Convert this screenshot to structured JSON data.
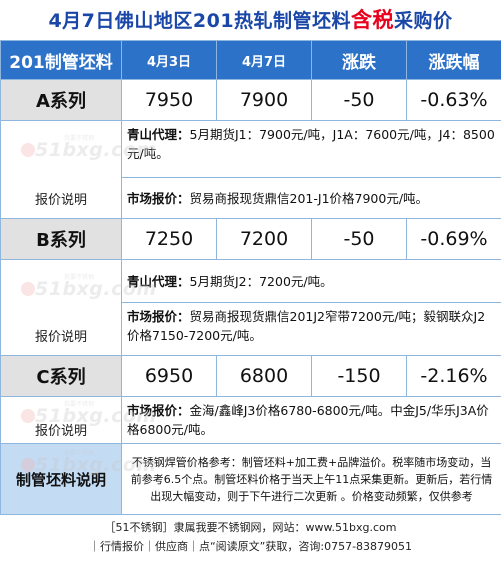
{
  "title": {
    "prefix": "4月7日佛山地区201热轧制管坯料",
    "highlight": "含税",
    "suffix": "采购价"
  },
  "table": {
    "header": {
      "product": "201制管坯料",
      "date1": "4月3日",
      "date2": "4月7日",
      "change": "涨跌",
      "change_pct": "涨跌幅"
    },
    "rows": [
      {
        "name": "A系列",
        "v1": "7950",
        "v2": "7900",
        "change": "-50",
        "pct": "-0.63%",
        "label": "报价说明",
        "lines": [
          {
            "key": "青山代理：",
            "text": "5月期货J1：7900元/吨，J1A：7600元/吨，J4：8500元/吨。"
          },
          {
            "key": "市场报价：",
            "text": "贸易商报现货鼎信201-J1价格7900元/吨。"
          }
        ]
      },
      {
        "name": "B系列",
        "v1": "7250",
        "v2": "7200",
        "change": "-50",
        "pct": "-0.69%",
        "label": "报价说明",
        "lines": [
          {
            "key": "青山代理：",
            "text": "5月期货J2：7200元/吨。"
          },
          {
            "key": "市场报价：",
            "text": "贸易商报现货鼎信201J2窄带7200元/吨；毅钢联众J2价格7150-7200元/吨。"
          }
        ]
      },
      {
        "name": "C系列",
        "v1": "6950",
        "v2": "6800",
        "change": "-150",
        "pct": "-2.16%",
        "label": "报价说明",
        "lines": [
          {
            "key": "市场报价：",
            "text": "金海/鑫峰J3价格6780-6800元/吨。中金J5/华乐J3A价格6800元/吨。"
          }
        ]
      }
    ],
    "note": {
      "label": "制管坯料说明",
      "text": "不锈钢焊管价格参考：制管坯料+加工费+品牌溢价。税率随市场变动，当前参考6.5个点。制管坯料价格于当天上午11点采集更新。更新后，若行情出现大幅变动，则于下午进行二次更新 。价格变动频繁，仅供参考"
    }
  },
  "watermark": {
    "brand": "51bxg.com",
    "tagline": "我要不锈钢"
  },
  "footer": {
    "line1": "［51不锈钢］隶属我要不锈钢网，网站：www.51bxg.com",
    "line2": "｜行情报价｜供应商｜点“阅读原文”获取，咨询:0757-83879051"
  }
}
